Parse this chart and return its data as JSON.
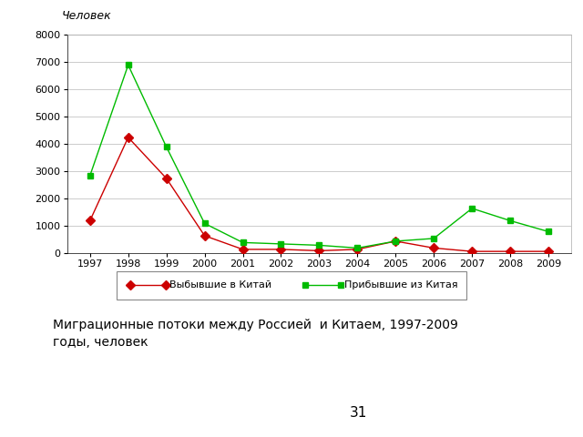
{
  "years": [
    1997,
    1998,
    1999,
    2000,
    2001,
    2002,
    2003,
    2004,
    2005,
    2006,
    2007,
    2008,
    2009
  ],
  "departed": [
    1200,
    4250,
    2750,
    650,
    150,
    150,
    100,
    150,
    450,
    200,
    75,
    75,
    75
  ],
  "arrived": [
    2850,
    6900,
    3900,
    1100,
    400,
    350,
    300,
    200,
    450,
    550,
    1650,
    1200,
    800
  ],
  "departed_color": "#cc0000",
  "arrived_color": "#00bb00",
  "ylabel": "Человек",
  "ylim": [
    0,
    8000
  ],
  "yticks": [
    0,
    1000,
    2000,
    3000,
    4000,
    5000,
    6000,
    7000,
    8000
  ],
  "legend_departed": "Выбывшие в Китай",
  "legend_arrived": "Прибывшие из Китая",
  "caption": "Миграционные потоки между Россией  и Китаем, 1997-2009\nгоды, человек",
  "page_number": "31",
  "background_color": "#ffffff",
  "plot_bg_color": "#ffffff",
  "grid_color": "#cccccc"
}
